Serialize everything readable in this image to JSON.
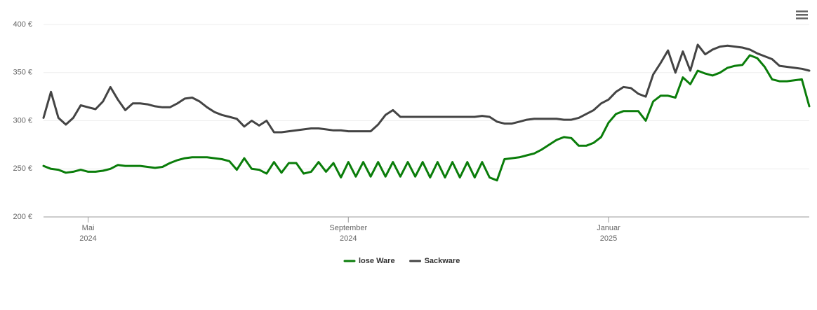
{
  "chart_data": {
    "type": "line",
    "categories": [
      null,
      null,
      null,
      null,
      null,
      null,
      {
        "month": "Mai",
        "year": "2024"
      },
      null,
      null,
      null,
      null,
      null,
      null,
      null,
      null,
      null,
      null,
      null,
      null,
      null,
      null,
      null,
      null,
      null,
      null,
      null,
      null,
      null,
      null,
      null,
      null,
      null,
      null,
      null,
      null,
      null,
      null,
      null,
      null,
      null,
      null,
      {
        "month": "September",
        "year": "2024"
      },
      null,
      null,
      null,
      null,
      null,
      null,
      null,
      null,
      null,
      null,
      null,
      null,
      null,
      null,
      null,
      null,
      null,
      null,
      null,
      null,
      null,
      null,
      null,
      null,
      null,
      null,
      null,
      null,
      null,
      null,
      null,
      null,
      null,
      null,
      {
        "month": "Januar",
        "year": "2025"
      },
      null,
      null,
      null,
      null,
      null,
      null,
      null,
      null,
      null,
      null,
      null,
      null,
      null,
      null,
      null,
      null,
      null,
      null,
      null,
      null,
      null,
      null,
      null,
      null,
      null,
      null,
      null
    ],
    "series": [
      {
        "name": "lose Ware",
        "color": "#0a7d0a",
        "values": [
          253,
          250,
          249,
          246,
          247,
          249,
          247,
          247,
          248,
          250,
          254,
          253,
          253,
          253,
          252,
          251,
          252,
          256,
          259,
          261,
          262,
          262,
          262,
          261,
          260,
          258,
          249,
          261,
          250,
          249,
          245,
          257,
          246,
          256,
          256,
          245,
          247,
          257,
          247,
          256,
          241,
          257,
          242,
          257,
          242,
          257,
          242,
          257,
          242,
          257,
          242,
          257,
          241,
          257,
          241,
          257,
          241,
          257,
          241,
          257,
          241,
          238,
          260,
          261,
          262,
          264,
          266,
          270,
          275,
          280,
          283,
          282,
          274,
          274,
          277,
          283,
          298,
          307,
          310,
          310,
          310,
          300,
          320,
          326,
          326,
          324,
          345,
          338,
          352,
          349,
          347,
          350,
          355,
          357,
          358,
          368,
          365,
          356,
          343,
          341,
          341,
          342,
          343,
          315
        ]
      },
      {
        "name": "Sackware",
        "color": "#444444",
        "values": [
          303,
          330,
          303,
          296,
          303,
          316,
          314,
          312,
          320,
          335,
          322,
          311,
          318,
          318,
          317,
          315,
          314,
          314,
          318,
          323,
          324,
          320,
          314,
          309,
          306,
          304,
          302,
          294,
          300,
          295,
          300,
          288,
          288,
          289,
          290,
          291,
          292,
          292,
          291,
          290,
          290,
          289,
          289,
          289,
          289,
          296,
          306,
          311,
          304,
          304,
          304,
          304,
          304,
          304,
          304,
          304,
          304,
          304,
          304,
          305,
          304,
          299,
          297,
          297,
          299,
          301,
          302,
          302,
          302,
          302,
          301,
          301,
          303,
          307,
          311,
          318,
          322,
          330,
          335,
          334,
          328,
          325,
          348,
          360,
          373,
          350,
          372,
          352,
          379,
          369,
          374,
          377,
          378,
          377,
          376,
          374,
          370,
          367,
          364,
          357,
          356,
          355,
          354,
          352
        ]
      }
    ],
    "ylim": [
      200,
      400
    ],
    "yticks": [
      {
        "value": 200,
        "label": "200 €"
      },
      {
        "value": 250,
        "label": "250 €"
      },
      {
        "value": 300,
        "label": "300 €"
      },
      {
        "value": 350,
        "label": "350 €"
      },
      {
        "value": 400,
        "label": "400 €"
      }
    ],
    "grid": true,
    "legend": "bottom"
  }
}
